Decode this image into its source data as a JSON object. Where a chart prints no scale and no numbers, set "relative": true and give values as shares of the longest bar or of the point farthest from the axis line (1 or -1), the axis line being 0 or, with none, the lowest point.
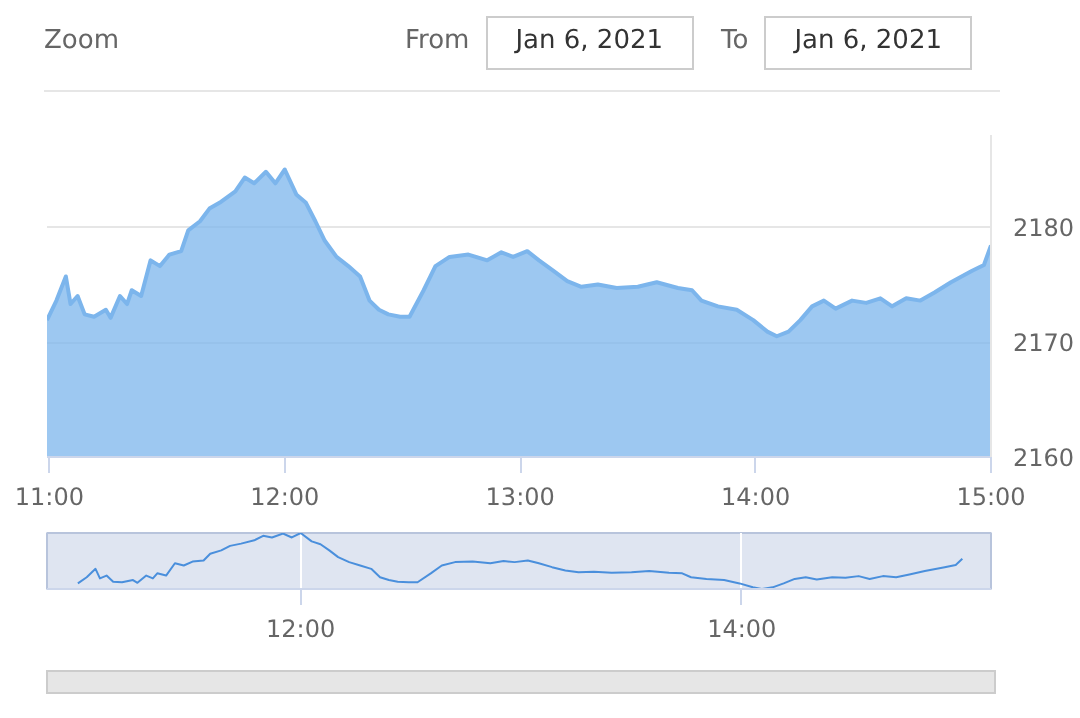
{
  "chart_data": [
    {
      "type": "area",
      "annotations": [
        "Zoom",
        "From",
        "Jan 6, 2021",
        "To",
        "Jan 6, 2021"
      ],
      "x": [
        10.99,
        11.03,
        11.07,
        11.09,
        11.12,
        11.15,
        11.19,
        11.24,
        11.26,
        11.3,
        11.33,
        11.35,
        11.39,
        11.43,
        11.47,
        11.51,
        11.56,
        11.59,
        11.64,
        11.68,
        11.73,
        11.79,
        11.83,
        11.87,
        11.92,
        11.96,
        12.0,
        12.05,
        12.09,
        12.13,
        12.17,
        12.22,
        12.27,
        12.32,
        12.36,
        12.4,
        12.44,
        12.49,
        12.53,
        12.59,
        12.64,
        12.7,
        12.78,
        12.86,
        12.92,
        12.97,
        13.03,
        13.08,
        13.14,
        13.2,
        13.26,
        13.33,
        13.41,
        13.5,
        13.58,
        13.67,
        13.73,
        13.77,
        13.84,
        13.92,
        13.99,
        14.05,
        14.09,
        14.14,
        14.19,
        14.24,
        14.29,
        14.34,
        14.41,
        14.47,
        14.53,
        14.58,
        14.64,
        14.7,
        14.76,
        14.83,
        14.92,
        14.97,
        15.0
      ],
      "series": [
        {
          "color": "#7cb5ec",
          "values": [
            2171.9,
            2173.6,
            2175.7,
            2173.3,
            2174.0,
            2172.4,
            2172.2,
            2172.8,
            2172.1,
            2174.0,
            2173.3,
            2174.5,
            2174.0,
            2177.1,
            2176.6,
            2177.6,
            2177.9,
            2179.7,
            2180.5,
            2181.6,
            2182.2,
            2183.1,
            2184.3,
            2183.8,
            2184.8,
            2183.8,
            2185.0,
            2182.8,
            2182.1,
            2180.5,
            2178.8,
            2177.4,
            2176.6,
            2175.7,
            2173.6,
            2172.8,
            2172.4,
            2172.2,
            2172.2,
            2174.5,
            2176.6,
            2177.4,
            2177.6,
            2177.1,
            2177.8,
            2177.4,
            2177.9,
            2177.1,
            2176.2,
            2175.3,
            2174.8,
            2175.0,
            2174.7,
            2174.8,
            2175.2,
            2174.7,
            2174.5,
            2173.6,
            2173.1,
            2172.8,
            2171.9,
            2170.9,
            2170.5,
            2170.9,
            2171.9,
            2173.1,
            2173.6,
            2172.9,
            2173.6,
            2173.4,
            2173.8,
            2173.1,
            2173.8,
            2173.6,
            2174.3,
            2175.2,
            2176.2,
            2176.7,
            2178.4
          ]
        }
      ],
      "xlim": [
        10.99,
        15.0
      ],
      "ylim": [
        2160,
        2188
      ],
      "xticks": [
        {
          "value": 11,
          "label": "11:00"
        },
        {
          "value": 12,
          "label": "12:00"
        },
        {
          "value": 13,
          "label": "13:00"
        },
        {
          "value": 14,
          "label": "14:00"
        },
        {
          "value": 15,
          "label": "15:00"
        }
      ],
      "yticks": [
        2160,
        2170,
        2180
      ],
      "grid": "y"
    },
    {
      "type": "line",
      "x": [
        10.99,
        11.03,
        11.07,
        11.09,
        11.12,
        11.15,
        11.19,
        11.24,
        11.26,
        11.3,
        11.33,
        11.35,
        11.39,
        11.43,
        11.47,
        11.51,
        11.56,
        11.59,
        11.64,
        11.68,
        11.73,
        11.79,
        11.83,
        11.87,
        11.92,
        11.96,
        12.0,
        12.05,
        12.09,
        12.13,
        12.17,
        12.22,
        12.27,
        12.32,
        12.36,
        12.4,
        12.44,
        12.49,
        12.53,
        12.59,
        12.64,
        12.7,
        12.78,
        12.86,
        12.92,
        12.97,
        13.03,
        13.08,
        13.14,
        13.2,
        13.26,
        13.33,
        13.41,
        13.5,
        13.58,
        13.67,
        13.73,
        13.77,
        13.84,
        13.92,
        13.99,
        14.05,
        14.09,
        14.14,
        14.19,
        14.24,
        14.29,
        14.34,
        14.41,
        14.47,
        14.53,
        14.58,
        14.64,
        14.7,
        14.76,
        14.83,
        14.92,
        14.97,
        15.0
      ],
      "series": [
        {
          "color": "#4a8fdc",
          "values": [
            0.1,
            0.21,
            0.36,
            0.19,
            0.24,
            0.13,
            0.12,
            0.16,
            0.11,
            0.24,
            0.19,
            0.28,
            0.24,
            0.46,
            0.42,
            0.49,
            0.51,
            0.63,
            0.69,
            0.77,
            0.81,
            0.87,
            0.95,
            0.92,
            0.99,
            0.92,
            1,
            0.85,
            0.8,
            0.69,
            0.57,
            0.48,
            0.42,
            0.36,
            0.21,
            0.16,
            0.13,
            0.12,
            0.12,
            0.28,
            0.42,
            0.48,
            0.49,
            0.46,
            0.5,
            0.48,
            0.51,
            0.46,
            0.39,
            0.33,
            0.3,
            0.31,
            0.29,
            0.3,
            0.32,
            0.29,
            0.28,
            0.21,
            0.18,
            0.16,
            0.1,
            0.03,
            0,
            0.03,
            0.1,
            0.18,
            0.21,
            0.17,
            0.21,
            0.2,
            0.23,
            0.18,
            0.23,
            0.21,
            0.26,
            0.32,
            0.39,
            0.43,
            0.54
          ]
        }
      ],
      "relative": true,
      "xlim": [
        10.85,
        15.13
      ],
      "xticks": [
        {
          "value": 12,
          "label": "12:00"
        },
        {
          "value": 14,
          "label": "14:00"
        }
      ],
      "grid": "x",
      "tick_labels": "x"
    }
  ]
}
